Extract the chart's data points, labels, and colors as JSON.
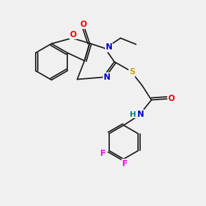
{
  "bg_color": "#f0f0f0",
  "bond_color": "#1a1a1a",
  "atom_colors": {
    "O": "#ff0000",
    "N": "#0000cc",
    "S": "#ccaa00",
    "F": "#ff00ff",
    "H": "#008080",
    "C": "#1a1a1a"
  },
  "bond_lw": 1.3,
  "font_size": 8.5
}
